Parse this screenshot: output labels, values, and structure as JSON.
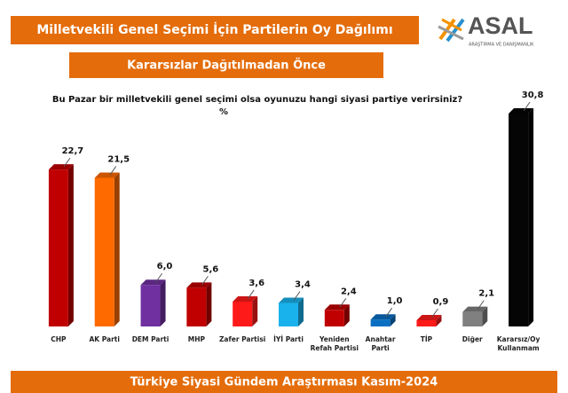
{
  "header": {
    "title": "Milletvekili Genel Seçimi İçin Partilerin Oy Dağılımı",
    "subtitle": "Kararsızlar Dağıtılmadan Önce"
  },
  "logo": {
    "name": "ASAL",
    "tagline": "ARAŞTIRMA VE DANIŞMANLIK"
  },
  "chart_data": {
    "type": "bar",
    "title": "Bu Pazar bir milletvekili genel seçimi olsa oyunuzu hangi siyasi partiye verirsiniz?",
    "subtitle": "%",
    "categories": [
      "CHP",
      "AK Parti",
      "DEM Parti",
      "MHP",
      "Zafer Partisi",
      "İYİ Parti",
      "Yeniden Refah Partisi",
      "Anahtar Parti",
      "TİP",
      "Diğer",
      "Kararsız/Oy Kullanmam"
    ],
    "values": [
      22.7,
      21.5,
      6.0,
      5.6,
      3.6,
      3.4,
      2.4,
      1.0,
      0.9,
      2.1,
      30.8
    ],
    "value_labels": [
      "22,7",
      "21,5",
      "6,0",
      "5,6",
      "3,6",
      "3,4",
      "2,4",
      "1,0",
      "0,9",
      "2,1",
      "30,8"
    ],
    "colors": [
      "#c00000",
      "#ff6a00",
      "#7030a0",
      "#c00000",
      "#ff1a1a",
      "#1ab2ec",
      "#c00000",
      "#0a6fc2",
      "#ff1a1a",
      "#808080",
      "#050505"
    ]
  },
  "footer": "Türkiye Siyasi Gündem Araştırması Kasım-2024"
}
